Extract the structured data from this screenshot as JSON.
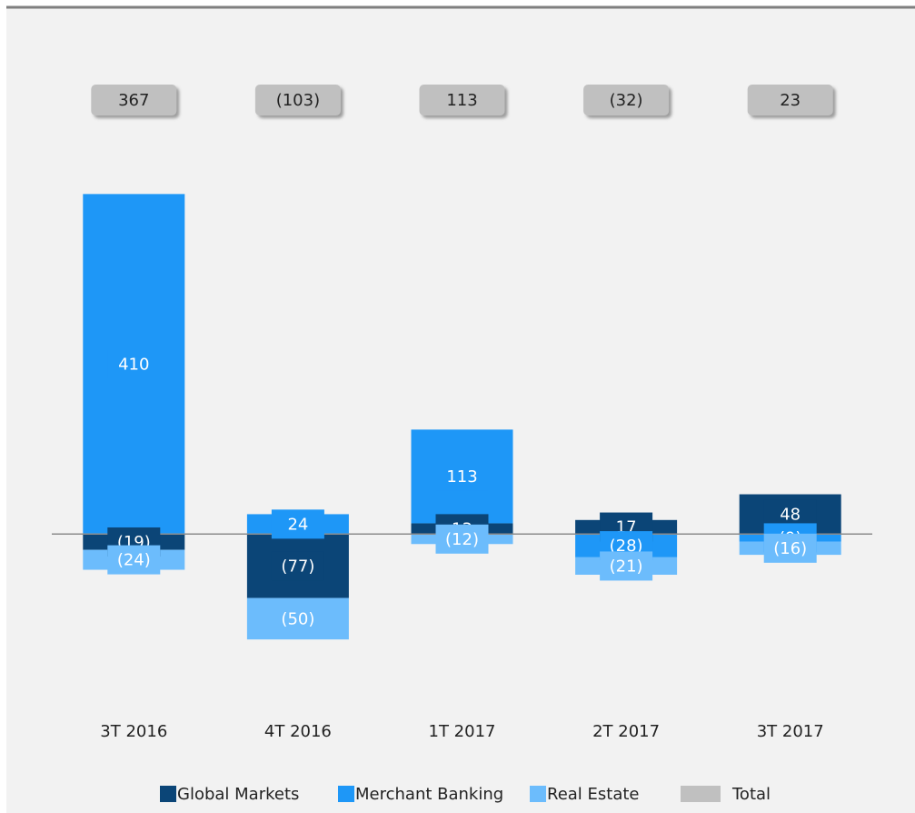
{
  "chart_data": {
    "type": "stacked-bar",
    "categories": [
      "3T 2016",
      "4T 2016",
      "1T 2017",
      "2T 2017",
      "3T 2017"
    ],
    "series": [
      {
        "name": "Global Markets",
        "color": "#0b4577",
        "values": [
          -19,
          -77,
          13,
          17,
          48
        ],
        "value_labels": [
          "(19)",
          "(77)",
          "13",
          "17",
          "48"
        ]
      },
      {
        "name": "Merchant Banking",
        "color": "#1e97f7",
        "values": [
          410,
          24,
          113,
          -28,
          -9
        ],
        "value_labels": [
          "410",
          "24",
          "113",
          "(28)",
          "(9)"
        ]
      },
      {
        "name": "Real Estate",
        "color": "#6cbcfc",
        "values": [
          -24,
          -50,
          -12,
          -21,
          -16
        ],
        "value_labels": [
          "(24)",
          "(50)",
          "(12)",
          "(21)",
          "(16)"
        ]
      }
    ],
    "totals": {
      "name": "Total",
      "color": "#c0c0c0",
      "values": [
        367,
        -103,
        113,
        -32,
        23
      ],
      "value_labels": [
        "367",
        "(103)",
        "113",
        "(32)",
        "23"
      ]
    },
    "ylim": [
      -140,
      440
    ]
  }
}
